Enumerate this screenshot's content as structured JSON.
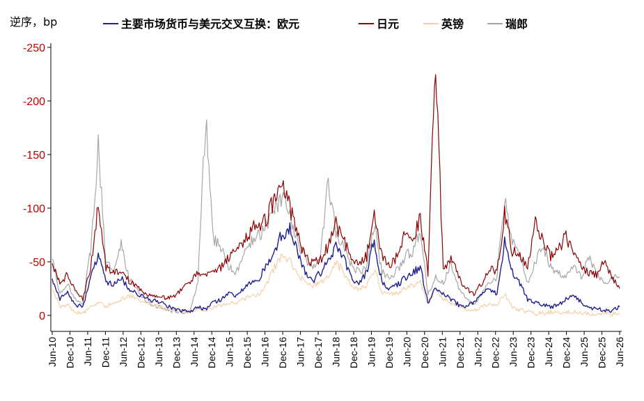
{
  "chart_data": {
    "type": "line",
    "ylabel": "逆序，bp",
    "y_axis_reversed": true,
    "ylim": [
      0,
      -270
    ],
    "yticks": [
      0,
      -50,
      -100,
      -150,
      -200,
      -250
    ],
    "ytick_color": "#c00000",
    "xticks": [
      "Jun-10",
      "Dec-10",
      "Jun-11",
      "Dec-11",
      "Jun-12",
      "Dec-12",
      "Jun-13",
      "Dec-13",
      "Jun-14",
      "Dec-14",
      "Jun-15",
      "Dec-15",
      "Jun-16",
      "Dec-16",
      "Jun-17",
      "Dec-17",
      "Jun-18",
      "Dec-18",
      "Jun-19",
      "Dec-19",
      "Jun-20",
      "Dec-20",
      "Jun-21",
      "Dec-21",
      "Jun-22",
      "Dec-22",
      "Jun-23",
      "Dec-23",
      "Jun-24",
      "Dec-24",
      "Jun-25",
      "Dec-25",
      "Jun-26"
    ],
    "grid": false,
    "legend_position": "top",
    "series": [
      {
        "name": "主要市场货币与美元交叉互换：欧元",
        "color": "#1f1f8f",
        "values": [
          -35,
          -15,
          -22,
          -10,
          -8,
          -35,
          -55,
          -32,
          -28,
          -35,
          -25,
          -20,
          -18,
          -14,
          -12,
          -9,
          -5,
          -4,
          -3,
          -8,
          -5,
          -12,
          -15,
          -20,
          -18,
          -25,
          -32,
          -35,
          -48,
          -62,
          -75,
          -82,
          -60,
          -40,
          -32,
          -40,
          -50,
          -65,
          -55,
          -35,
          -30,
          -40,
          -70,
          -30,
          -25,
          -28,
          -35,
          -40,
          -45,
          -12,
          -25,
          -20,
          -15,
          -10,
          -8,
          -12,
          -20,
          -25,
          -20,
          -70,
          -40,
          -30,
          -15,
          -12,
          -10,
          -8,
          -10,
          -15,
          -20,
          -12,
          -8,
          -6,
          -5,
          -4,
          -8
        ]
      },
      {
        "name": "日元",
        "color": "#8b0000",
        "values": [
          -50,
          -30,
          -38,
          -25,
          -15,
          -45,
          -100,
          -45,
          -40,
          -42,
          -32,
          -28,
          -20,
          -18,
          -18,
          -16,
          -18,
          -25,
          -30,
          -40,
          -38,
          -42,
          -45,
          -55,
          -65,
          -70,
          -80,
          -85,
          -90,
          -110,
          -120,
          -100,
          -75,
          -55,
          -48,
          -52,
          -65,
          -85,
          -70,
          -55,
          -48,
          -55,
          -100,
          -55,
          -45,
          -55,
          -75,
          -70,
          -90,
          -40,
          -245,
          -40,
          -55,
          -35,
          -25,
          -20,
          -30,
          -45,
          -40,
          -95,
          -60,
          -55,
          -45,
          -85,
          -70,
          -55,
          -60,
          -75,
          -55,
          -45,
          -40,
          -38,
          -50,
          -35,
          -25
        ]
      },
      {
        "name": "英镑",
        "color": "#f5cfa8",
        "values": [
          -25,
          -8,
          -10,
          -3,
          -2,
          -8,
          -12,
          -8,
          -12,
          -15,
          -18,
          -16,
          -12,
          -10,
          -8,
          -6,
          -5,
          -4,
          -3,
          -6,
          -5,
          -8,
          -10,
          -12,
          -12,
          -15,
          -18,
          -20,
          -30,
          -45,
          -55,
          -50,
          -38,
          -30,
          -28,
          -30,
          -38,
          -50,
          -40,
          -28,
          -24,
          -28,
          -42,
          -22,
          -20,
          -20,
          -25,
          -28,
          -30,
          -12,
          -25,
          -15,
          -12,
          -8,
          -6,
          -5,
          -8,
          -10,
          -10,
          -20,
          -8,
          -5,
          -3,
          -2,
          -2,
          -3,
          -2,
          -3,
          -3,
          -2,
          -1,
          -1,
          -2,
          -1,
          -1
        ]
      },
      {
        "name": "瑞郎",
        "color": "#a6a6a6",
        "values": [
          -55,
          -20,
          -30,
          -15,
          -12,
          -60,
          -155,
          -50,
          -40,
          -65,
          -35,
          -25,
          -15,
          -10,
          -8,
          -5,
          -4,
          -3,
          -5,
          -30,
          -185,
          -70,
          -65,
          -45,
          -40,
          -55,
          -70,
          -75,
          -85,
          -100,
          -108,
          -90,
          -70,
          -52,
          -45,
          -55,
          -125,
          -75,
          -65,
          -48,
          -40,
          -45,
          -85,
          -40,
          -35,
          -42,
          -55,
          -60,
          -80,
          -20,
          -35,
          -30,
          -50,
          -25,
          -15,
          -10,
          -20,
          -30,
          -35,
          -110,
          -70,
          -55,
          -30,
          -50,
          -65,
          -45,
          -40,
          -35,
          -45,
          -35,
          -55,
          -40,
          -30,
          -35,
          -35
        ]
      }
    ]
  }
}
